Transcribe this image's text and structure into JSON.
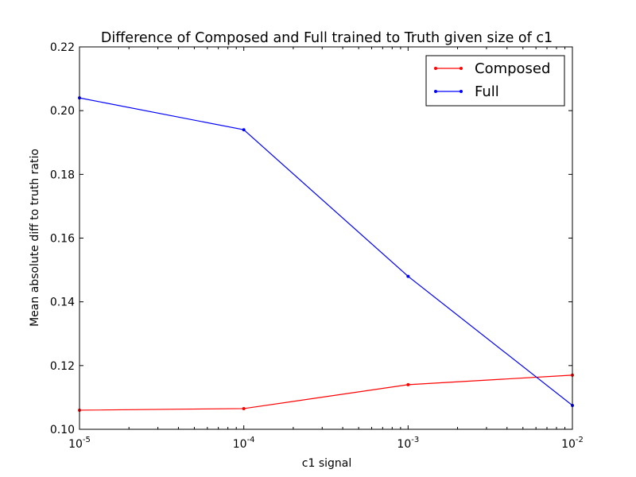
{
  "chart_data": {
    "type": "line",
    "title": "Difference of Composed and Full trained to Truth given size of c1",
    "xlabel": "c1 signal",
    "ylabel": "Mean absolute diff to truth ratio",
    "x_scale": "log",
    "x": [
      1e-05,
      0.0001,
      0.001,
      0.01
    ],
    "x_tick_labels": [
      {
        "base": "10",
        "exp": "-5"
      },
      {
        "base": "10",
        "exp": "-4"
      },
      {
        "base": "10",
        "exp": "-3"
      },
      {
        "base": "10",
        "exp": "-2"
      }
    ],
    "xlim": [
      1e-05,
      0.01
    ],
    "ylim": [
      0.1,
      0.22
    ],
    "y_ticks": [
      0.1,
      0.12,
      0.14,
      0.16,
      0.18,
      0.2,
      0.22
    ],
    "y_tick_labels": [
      "0.10",
      "0.12",
      "0.14",
      "0.16",
      "0.18",
      "0.20",
      "0.22"
    ],
    "grid": false,
    "legend_position": "top-right",
    "series": [
      {
        "name": "Composed",
        "color": "#ff0000",
        "values": [
          0.106,
          0.1065,
          0.114,
          0.117
        ]
      },
      {
        "name": "Full",
        "color": "#0000ff",
        "values": [
          0.204,
          0.194,
          0.148,
          0.1075
        ]
      }
    ]
  }
}
